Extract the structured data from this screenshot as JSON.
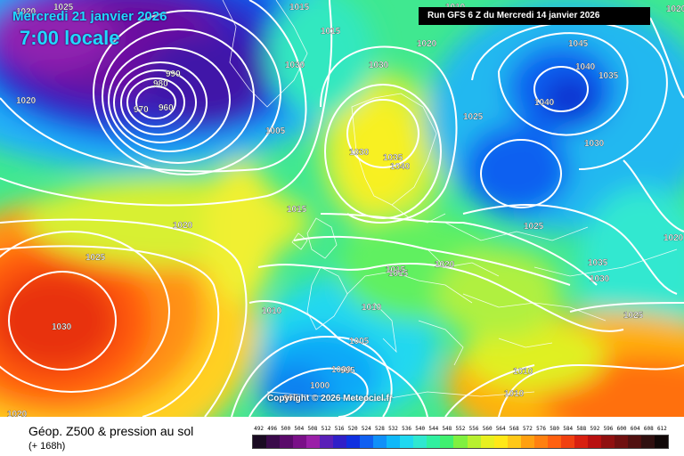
{
  "header": {
    "date_label": "Mercredi 21 janvier 2026",
    "time_label": "7:00 locale",
    "run_label": "Run GFS 6 Z du Mercredi 14 janvier 2026"
  },
  "copyright": "Copyright © 2026 Meteociel.fr",
  "footer": {
    "title": "Géop. Z500 & pression au sol",
    "subtitle": "(+ 168h)"
  },
  "legend": {
    "values": [
      "492",
      "496",
      "500",
      "504",
      "508",
      "512",
      "516",
      "520",
      "524",
      "528",
      "532",
      "536",
      "540",
      "544",
      "548",
      "552",
      "556",
      "560",
      "564",
      "568",
      "572",
      "576",
      "580",
      "584",
      "588",
      "592",
      "596",
      "600",
      "604",
      "608",
      "612"
    ],
    "colors": [
      "#1a0a22",
      "#3a0a4a",
      "#5a0a6a",
      "#7a1088",
      "#9a20a8",
      "#5a20b8",
      "#3020c8",
      "#1030e0",
      "#1060f0",
      "#1090f8",
      "#10b8f8",
      "#20d8f0",
      "#30e8d0",
      "#30f0a0",
      "#40f070",
      "#80f040",
      "#b8f030",
      "#e8f020",
      "#ffe818",
      "#ffc818",
      "#ffa010",
      "#ff8010",
      "#ff6010",
      "#f04010",
      "#d82010",
      "#b81010",
      "#901010",
      "#701010",
      "#501010",
      "#301010",
      "#100808"
    ]
  },
  "isobar_labels": [
    {
      "text": "1020"
    },
    {
      "text": "1025"
    },
    {
      "text": "1020"
    },
    {
      "text": "1015"
    },
    {
      "text": "990"
    },
    {
      "text": "980"
    },
    {
      "text": "970"
    },
    {
      "text": "960"
    },
    {
      "text": "1030"
    },
    {
      "text": "1015"
    },
    {
      "text": "1020"
    },
    {
      "text": "1030"
    },
    {
      "text": "1025"
    },
    {
      "text": "1005"
    },
    {
      "text": "1030"
    },
    {
      "text": "1035"
    },
    {
      "text": "1040"
    },
    {
      "text": "1045"
    },
    {
      "text": "1040"
    },
    {
      "text": "1035"
    },
    {
      "text": "1030"
    },
    {
      "text": "1025"
    },
    {
      "text": "1030"
    },
    {
      "text": "1035"
    },
    {
      "text": "1040"
    },
    {
      "text": "1015"
    },
    {
      "text": "1020"
    },
    {
      "text": "1025"
    },
    {
      "text": "1030"
    },
    {
      "text": "1025"
    },
    {
      "text": "1020"
    },
    {
      "text": "1015"
    },
    {
      "text": "1010"
    },
    {
      "text": "1010"
    },
    {
      "text": "1005"
    },
    {
      "text": "995"
    },
    {
      "text": "1000"
    },
    {
      "text": "995"
    },
    {
      "text": "1010"
    },
    {
      "text": "1010"
    },
    {
      "text": "1010"
    },
    {
      "text": "1020"
    },
    {
      "text": "1030"
    },
    {
      "text": "1020"
    },
    {
      "text": "1025"
    },
    {
      "text": "1020"
    },
    {
      "text": "1010"
    },
    {
      "text": "1015"
    }
  ]
}
